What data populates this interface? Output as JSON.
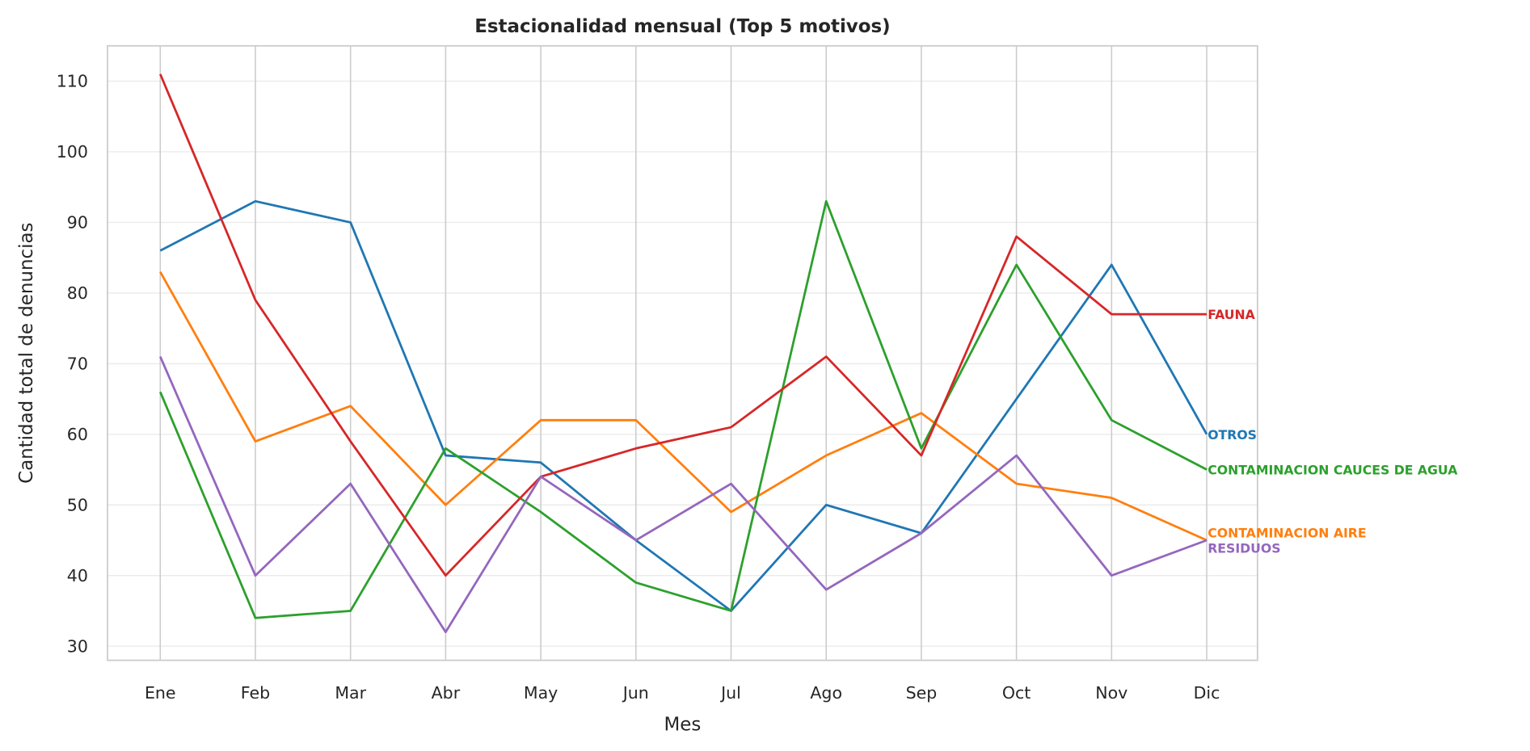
{
  "chart_data": {
    "type": "line",
    "title": "Estacionalidad mensual (Top 5 motivos)",
    "xlabel": "Mes",
    "ylabel": "Cantidad total de denuncias",
    "categories": [
      "Ene",
      "Feb",
      "Mar",
      "Abr",
      "May",
      "Jun",
      "Jul",
      "Ago",
      "Sep",
      "Oct",
      "Nov",
      "Dic"
    ],
    "ylim": [
      28,
      115
    ],
    "yticks": [
      30,
      40,
      50,
      60,
      70,
      80,
      90,
      100,
      110
    ],
    "grid": true,
    "legend": "inline labels at line ends (right)",
    "series": [
      {
        "name": "OTROS",
        "color": "#1f77b4",
        "values": [
          86,
          93,
          90,
          57,
          56,
          45,
          35,
          50,
          46,
          65,
          84,
          60
        ]
      },
      {
        "name": "CONTAMINACION AIRE",
        "color": "#ff7f0e",
        "values": [
          83,
          59,
          64,
          50,
          62,
          62,
          49,
          57,
          63,
          53,
          51,
          45
        ]
      },
      {
        "name": "CONTAMINACION CAUCES DE AGUA",
        "color": "#2ca02c",
        "values": [
          66,
          34,
          35,
          58,
          49,
          39,
          35,
          93,
          58,
          84,
          62,
          55
        ]
      },
      {
        "name": "FAUNA",
        "color": "#d62728",
        "values": [
          111,
          79,
          59,
          40,
          54,
          58,
          61,
          71,
          57,
          88,
          77,
          77
        ]
      },
      {
        "name": "RESIDUOS",
        "color": "#9467bd",
        "values": [
          71,
          40,
          53,
          32,
          54,
          45,
          53,
          38,
          46,
          57,
          40,
          45
        ]
      }
    ]
  }
}
